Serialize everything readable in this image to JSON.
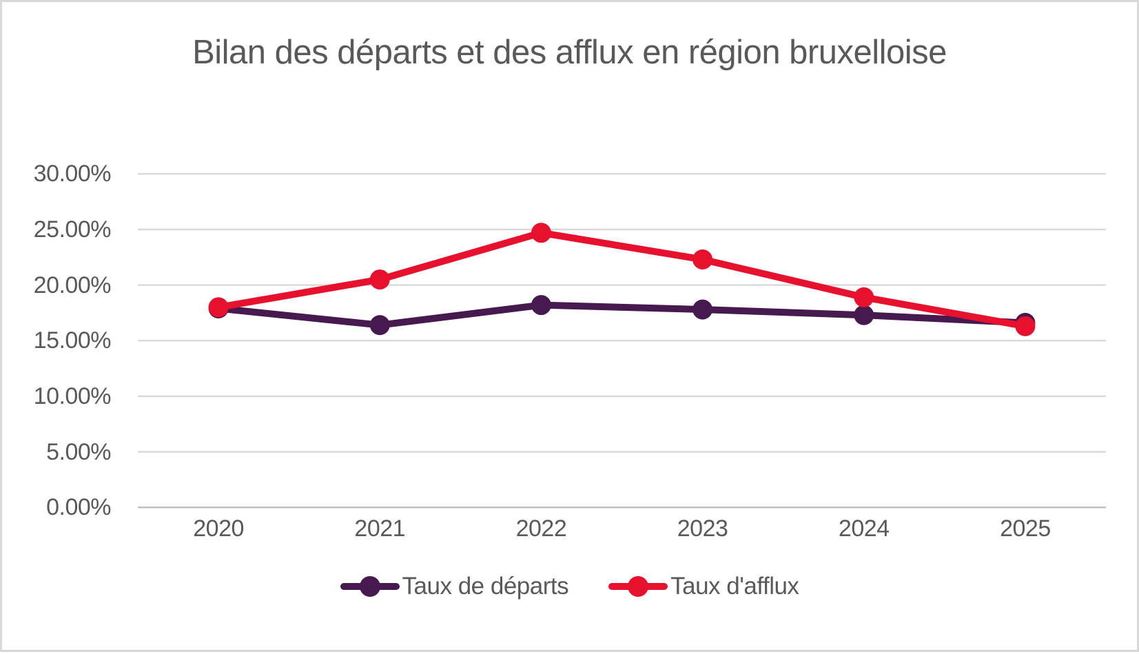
{
  "frame": {
    "background": "#FFFFFF",
    "border_color": "#D8D8D8"
  },
  "colors": {
    "title_text": "#595959",
    "axis_text": "#595959",
    "gridline": "#D9D9D9",
    "axis_line": "#BFBFBF",
    "series_departs": "#46194F",
    "series_afflux": "#E8112D"
  },
  "chart_data": {
    "type": "line",
    "title": "Bilan des départs et des afflux en région bruxelloise",
    "categories": [
      "2020",
      "2021",
      "2022",
      "2023",
      "2024",
      "2025"
    ],
    "series": [
      {
        "name": "Taux de départs",
        "color": "#46194F",
        "values": [
          17.9,
          16.4,
          18.2,
          17.8,
          17.3,
          16.6
        ]
      },
      {
        "name": "Taux d'afflux",
        "color": "#E8112D",
        "values": [
          18.0,
          20.5,
          24.7,
          22.3,
          18.9,
          16.3
        ]
      }
    ],
    "xlabel": "",
    "ylabel": "",
    "ylim": [
      0,
      30
    ],
    "y_tick_step": 5,
    "grid": true,
    "legend_position": "bottom",
    "value_format": "percent",
    "y_ticks": [
      {
        "value": 30,
        "label": "30.00%"
      },
      {
        "value": 25,
        "label": "25.00%"
      },
      {
        "value": 20,
        "label": "20.00%"
      },
      {
        "value": 15,
        "label": "15.00%"
      },
      {
        "value": 10,
        "label": "10.00%"
      },
      {
        "value": 5,
        "label": "5.00%"
      },
      {
        "value": 0,
        "label": "0.00%"
      }
    ]
  }
}
